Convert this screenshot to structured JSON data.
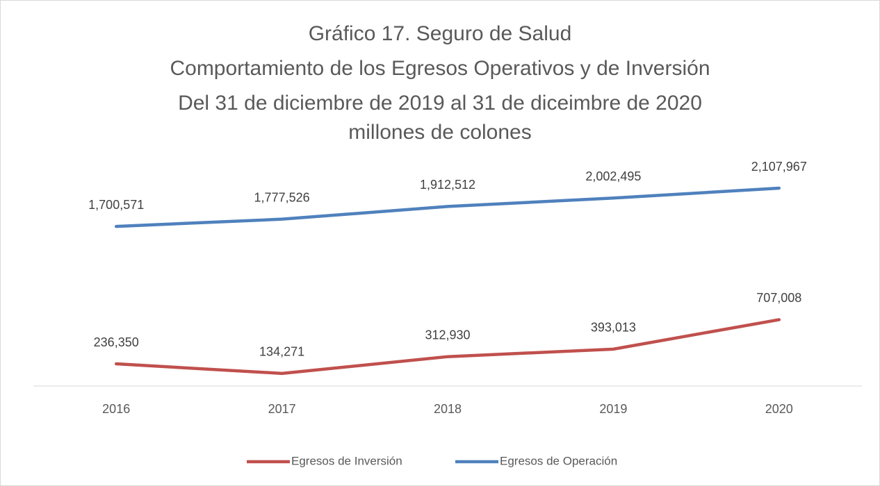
{
  "chart_data": {
    "type": "line",
    "title": [
      "Gráfico 17. Seguro de Salud",
      "Comportamiento de los Egresos Operativos y de Inversión",
      "Del 31 de diciembre de 2019 al 31 de diceimbre de 2020",
      "millones de colones"
    ],
    "categories": [
      "2016",
      "2017",
      "2018",
      "2019",
      "2020"
    ],
    "ylim": [
      0,
      2500000
    ],
    "series": [
      {
        "name": "Egresos de Inversión",
        "color": "#c0504d",
        "values": [
          236350,
          134271,
          312930,
          393013,
          707008
        ],
        "value_labels": [
          "236,350",
          "134,271",
          "312,930",
          "393,013",
          "707,008"
        ]
      },
      {
        "name": "Egresos de Operación",
        "color": "#4f81bd",
        "values": [
          1700571,
          1777526,
          1912512,
          2002495,
          2107967
        ],
        "value_labels": [
          "1,700,571",
          "1,777,526",
          "1,912,512",
          "2,002,495",
          "2,107,967"
        ]
      }
    ]
  }
}
